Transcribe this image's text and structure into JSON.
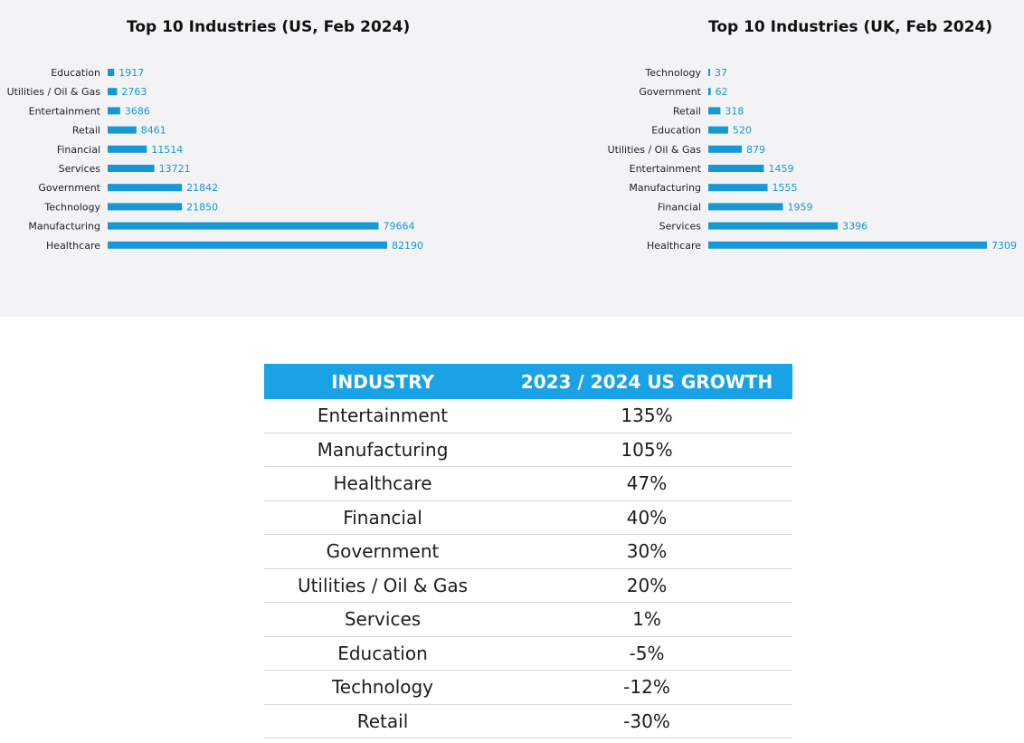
{
  "chart_data": [
    {
      "type": "bar",
      "orientation": "horizontal",
      "title": "Top 10 Industries (US, Feb 2024)",
      "categories": [
        "Education",
        "Utilities / Oil & Gas",
        "Entertainment",
        "Retail",
        "Financial",
        "Services",
        "Government",
        "Technology",
        "Manufacturing",
        "Healthcare"
      ],
      "values": [
        1917,
        2763,
        3686,
        8461,
        11514,
        13721,
        21842,
        21850,
        79664,
        82190
      ],
      "data_labels": [
        "1917",
        "2763",
        "3686",
        "8461",
        "11514",
        "13721",
        "21842",
        "21850",
        "79664",
        "82190"
      ],
      "xlim": [
        0,
        82190
      ],
      "grid": false,
      "bar_color": "#1598d4"
    },
    {
      "type": "bar",
      "orientation": "horizontal",
      "title": "Top 10 Industries (UK, Feb 2024)",
      "categories": [
        "Technology",
        "Government",
        "Retail",
        "Education",
        "Utilities / Oil & Gas",
        "Entertainment",
        "Manufacturing",
        "Financial",
        "Services",
        "Healthcare"
      ],
      "values": [
        37,
        62,
        318,
        520,
        879,
        1459,
        1555,
        1959,
        3396,
        7309
      ],
      "data_labels": [
        "37",
        "62",
        "318",
        "520",
        "879",
        "1459",
        "1555",
        "1959",
        "3396",
        "7309"
      ],
      "xlim": [
        0,
        7309
      ],
      "grid": false,
      "bar_color": "#1598d4"
    },
    {
      "type": "table",
      "columns": [
        "INDUSTRY",
        "2023 / 2024 US GROWTH"
      ],
      "rows": [
        [
          "Entertainment",
          "135%"
        ],
        [
          "Manufacturing",
          "105%"
        ],
        [
          "Healthcare",
          "47%"
        ],
        [
          "Financial",
          "40%"
        ],
        [
          "Government",
          "30%"
        ],
        [
          "Utilities / Oil & Gas",
          "20%"
        ],
        [
          "Services",
          "1%"
        ],
        [
          "Education",
          "-5%"
        ],
        [
          "Technology",
          "-12%"
        ],
        [
          "Retail",
          "-30%"
        ]
      ],
      "header_color": "#19a2e5"
    }
  ]
}
